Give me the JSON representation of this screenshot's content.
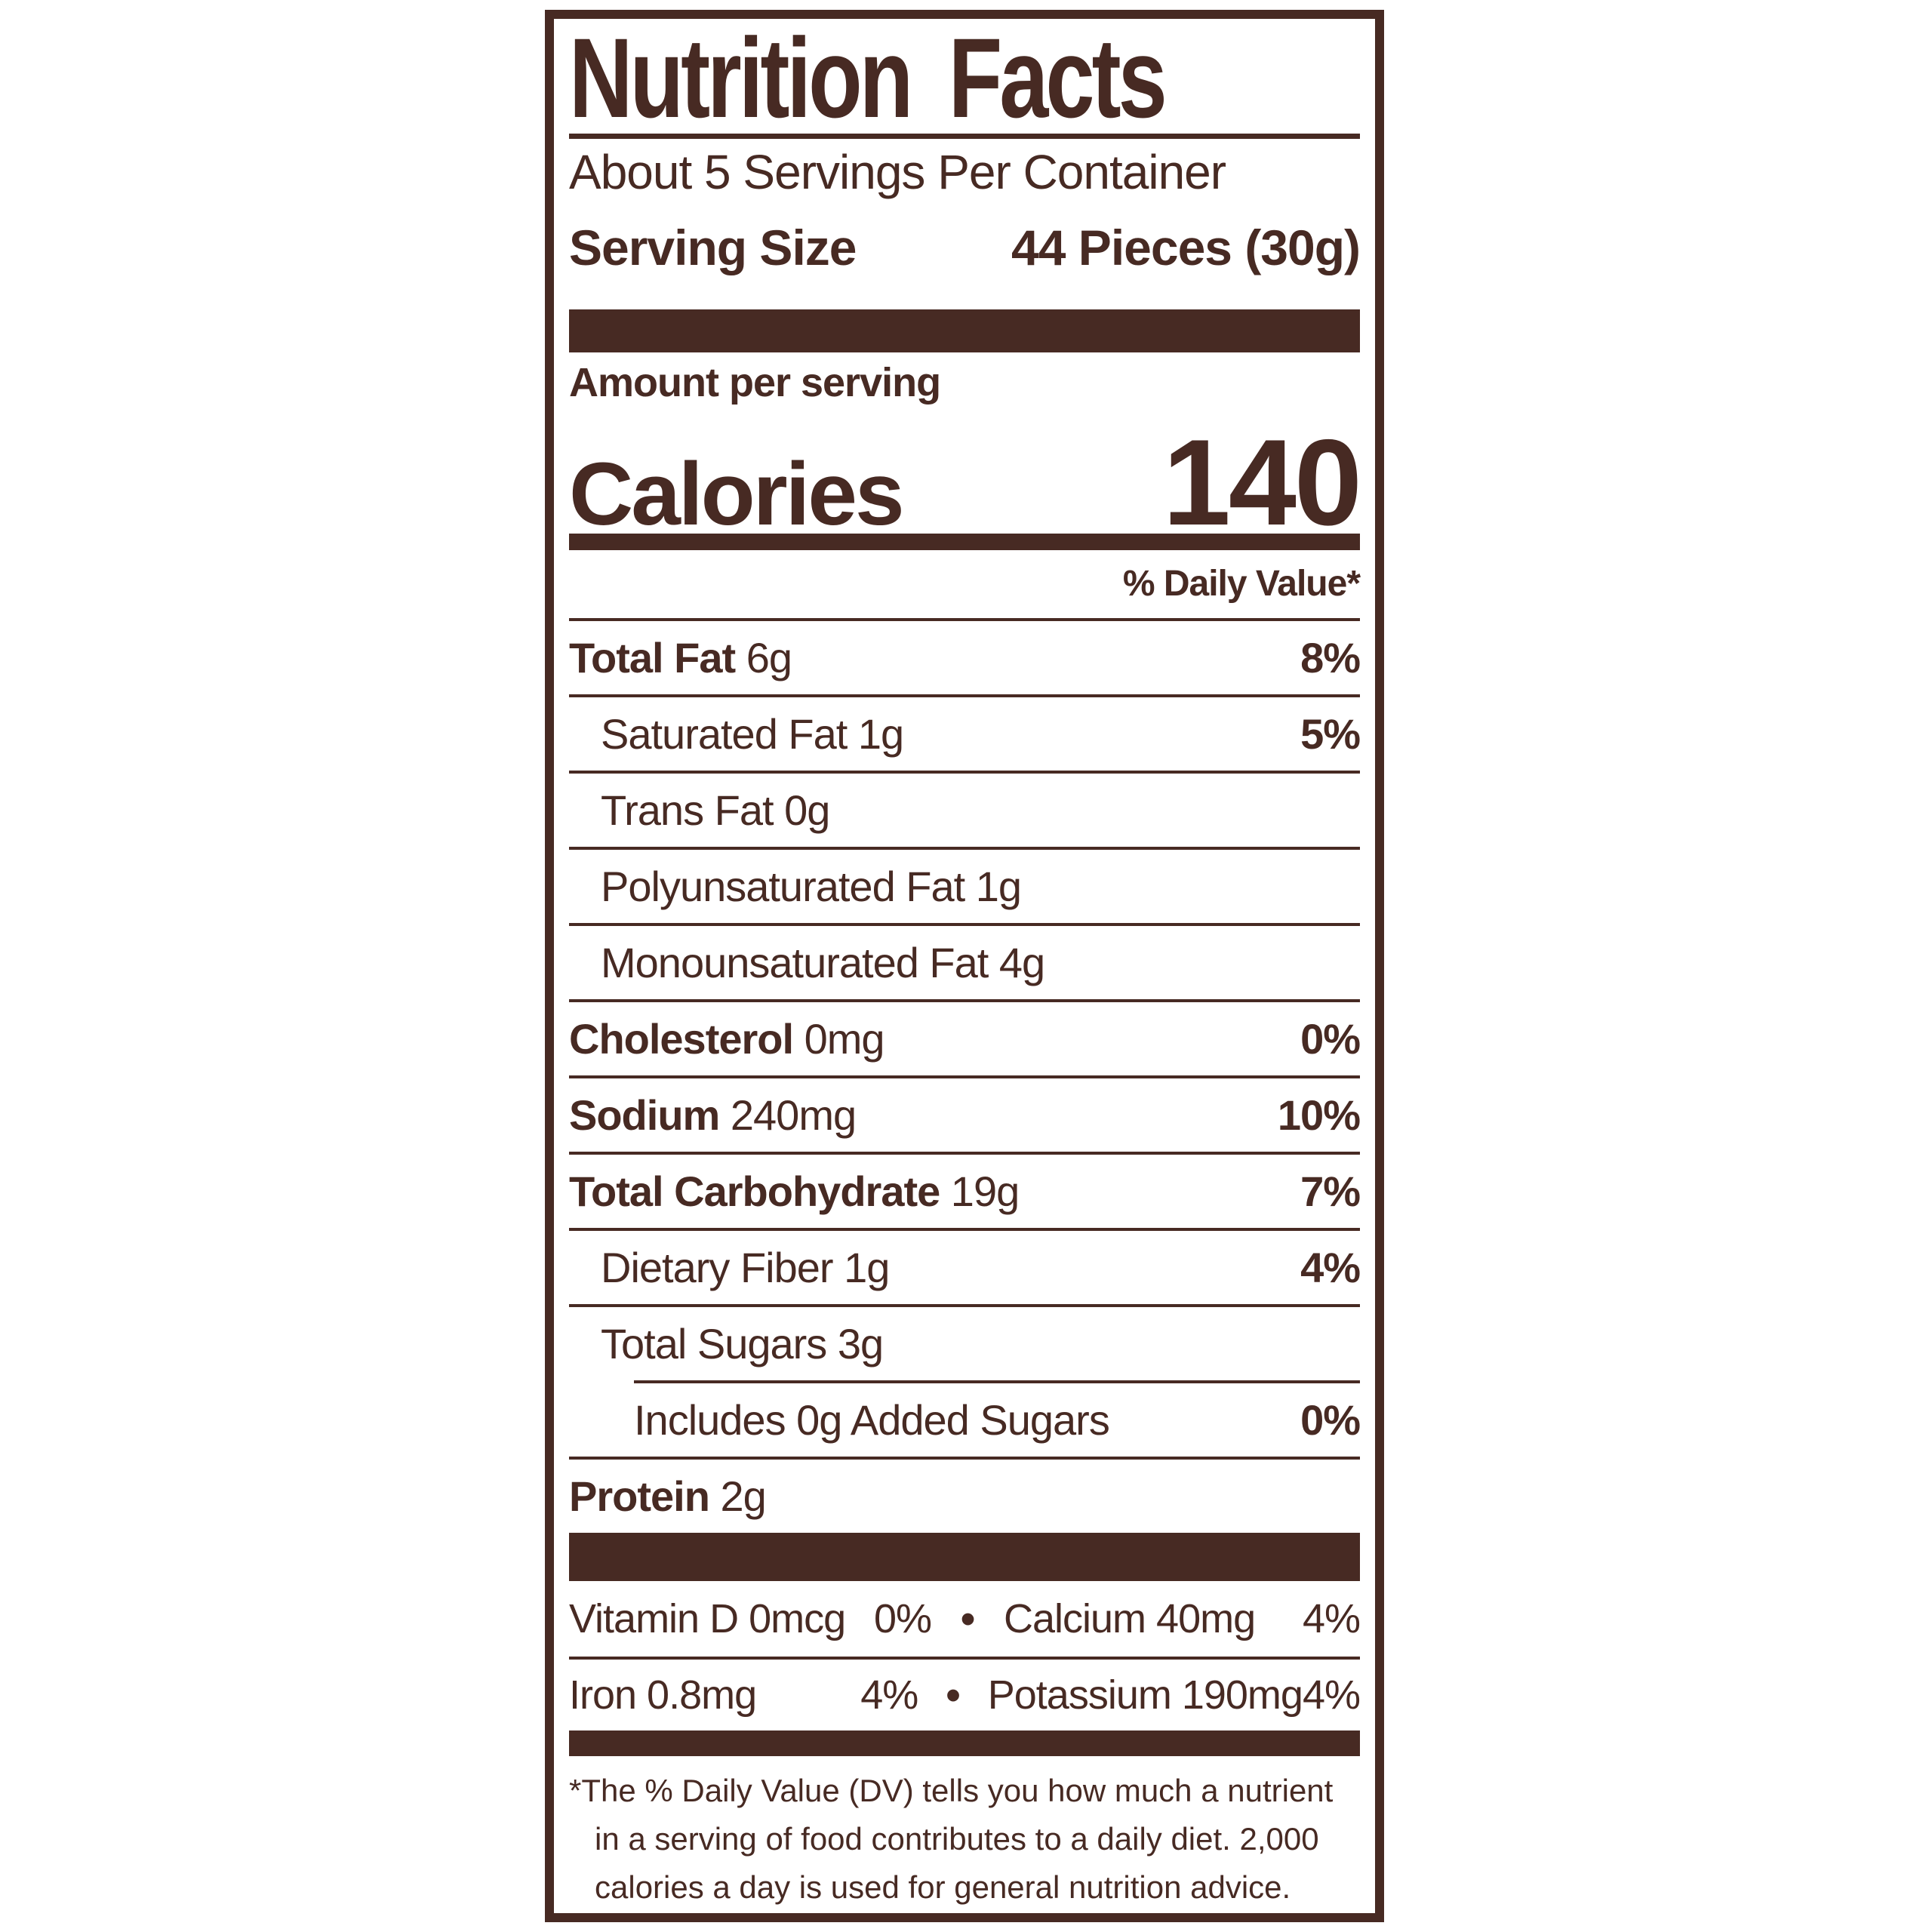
{
  "label": {
    "title": "Nutrition Facts",
    "servings_per_container": "About 5 Servings Per Container",
    "serving_size_label": "Serving Size",
    "serving_size_value": "44 Pieces (30g)",
    "amount_per_serving": "Amount per serving",
    "calories_label": "Calories",
    "calories_value": "140",
    "daily_value_header": "% Daily Value*",
    "nutrients": [
      {
        "name": "Total Fat",
        "amount": "6g",
        "dv": "8%",
        "bold": true,
        "indent": 0,
        "rule_after": "full"
      },
      {
        "name": "Saturated Fat",
        "amount": "1g",
        "dv": "5%",
        "bold": false,
        "indent": 1,
        "rule_after": "full"
      },
      {
        "name": "Trans Fat",
        "amount": "0g",
        "dv": "",
        "bold": false,
        "indent": 1,
        "rule_after": "full"
      },
      {
        "name": "Polyunsaturated Fat",
        "amount": "1g",
        "dv": "",
        "bold": false,
        "indent": 1,
        "rule_after": "full"
      },
      {
        "name": "Monounsaturated Fat",
        "amount": "4g",
        "dv": "",
        "bold": false,
        "indent": 1,
        "rule_after": "full"
      },
      {
        "name": "Cholesterol",
        "amount": "0mg",
        "dv": "0%",
        "bold": true,
        "indent": 0,
        "rule_after": "full"
      },
      {
        "name": "Sodium",
        "amount": "240mg",
        "dv": "10%",
        "bold": true,
        "indent": 0,
        "rule_after": "full"
      },
      {
        "name": "Total Carbohydrate",
        "amount": "19g",
        "dv": "7%",
        "bold": true,
        "indent": 0,
        "rule_after": "full"
      },
      {
        "name": "Dietary Fiber",
        "amount": "1g",
        "dv": "4%",
        "bold": false,
        "indent": 1,
        "rule_after": "full"
      },
      {
        "name": "Total Sugars",
        "amount": "3g",
        "dv": "",
        "bold": false,
        "indent": 1,
        "rule_after": "indent"
      },
      {
        "name": "Includes 0g Added Sugars",
        "amount": "",
        "dv": "0%",
        "bold": false,
        "indent": 2,
        "rule_after": "full"
      },
      {
        "name": "Protein",
        "amount": "2g",
        "dv": "",
        "bold": true,
        "indent": 0,
        "rule_after": "none"
      }
    ],
    "micronutrients": {
      "bullet": "•",
      "rows": [
        {
          "left_name": "Vitamin D 0mcg",
          "left_dv": "0%",
          "right_name": "Calcium 40mg",
          "right_dv": "4%"
        },
        {
          "left_name": "Iron 0.8mg",
          "left_dv": "4%",
          "right_name": "Potassium 190mg",
          "right_dv": "4%"
        }
      ]
    },
    "footnote_lines": [
      "*The % Daily Value (DV) tells you how much a nutrient",
      "in a serving of food contributes to a daily diet. 2,000",
      "calories a day is used for general nutrition advice."
    ],
    "colors": {
      "ink": "#472a23",
      "background": "#ffffff"
    }
  }
}
